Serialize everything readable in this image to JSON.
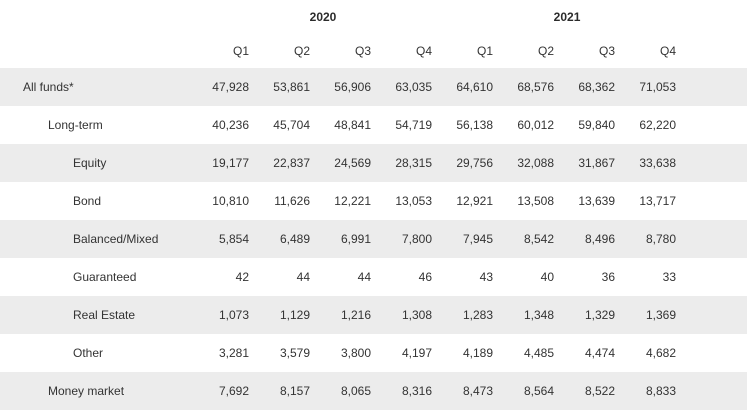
{
  "table": {
    "years": [
      "2020",
      "2021"
    ],
    "quarters": [
      "Q1",
      "Q2",
      "Q3",
      "Q4",
      "Q1",
      "Q2",
      "Q3",
      "Q4"
    ],
    "rows": [
      {
        "label": "All funds*",
        "level": 0,
        "shaded": true,
        "values": [
          "47,928",
          "53,861",
          "56,906",
          "63,035",
          "64,610",
          "68,576",
          "68,362",
          "71,053"
        ]
      },
      {
        "label": "Long-term",
        "level": 1,
        "shaded": false,
        "values": [
          "40,236",
          "45,704",
          "48,841",
          "54,719",
          "56,138",
          "60,012",
          "59,840",
          "62,220"
        ]
      },
      {
        "label": "Equity",
        "level": 2,
        "shaded": true,
        "values": [
          "19,177",
          "22,837",
          "24,569",
          "28,315",
          "29,756",
          "32,088",
          "31,867",
          "33,638"
        ]
      },
      {
        "label": "Bond",
        "level": 2,
        "shaded": false,
        "values": [
          "10,810",
          "11,626",
          "12,221",
          "13,053",
          "12,921",
          "13,508",
          "13,639",
          "13,717"
        ]
      },
      {
        "label": "Balanced/Mixed",
        "level": 2,
        "shaded": true,
        "values": [
          "5,854",
          "6,489",
          "6,991",
          "7,800",
          "7,945",
          "8,542",
          "8,496",
          "8,780"
        ]
      },
      {
        "label": "Guaranteed",
        "level": 2,
        "shaded": false,
        "values": [
          "42",
          "44",
          "44",
          "46",
          "43",
          "40",
          "36",
          "33"
        ]
      },
      {
        "label": "Real Estate",
        "level": 2,
        "shaded": true,
        "values": [
          "1,073",
          "1,129",
          "1,216",
          "1,308",
          "1,283",
          "1,348",
          "1,329",
          "1,369"
        ]
      },
      {
        "label": "Other",
        "level": 2,
        "shaded": false,
        "values": [
          "3,281",
          "3,579",
          "3,800",
          "4,197",
          "4,189",
          "4,485",
          "4,474",
          "4,682"
        ]
      },
      {
        "label": "Money market",
        "level": 1,
        "shaded": true,
        "values": [
          "7,692",
          "8,157",
          "8,065",
          "8,316",
          "8,473",
          "8,564",
          "8,522",
          "8,833"
        ]
      }
    ]
  }
}
